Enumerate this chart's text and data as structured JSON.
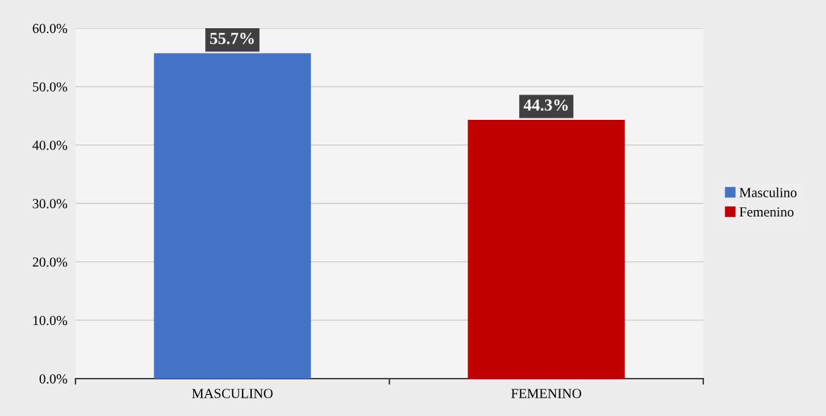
{
  "chart_data": {
    "type": "bar",
    "categories": [
      "MASCULINO",
      "FEMENINO"
    ],
    "series": [
      {
        "name": "Masculino",
        "color": "#4472c4",
        "values": [
          55.7,
          null
        ],
        "value_labels": [
          "55.7%",
          null
        ]
      },
      {
        "name": "Femenino",
        "color": "#c00000",
        "values": [
          null,
          44.3
        ],
        "value_labels": [
          null,
          "44.3%"
        ]
      }
    ],
    "ylim": [
      0,
      60
    ],
    "yticks": [
      {
        "value": 0,
        "label": "0.0%"
      },
      {
        "value": 10,
        "label": "10.0%"
      },
      {
        "value": 20,
        "label": "20.0%"
      },
      {
        "value": 30,
        "label": "30.0%"
      },
      {
        "value": 40,
        "label": "40.0%"
      },
      {
        "value": 50,
        "label": "50.0%"
      },
      {
        "value": 60,
        "label": "60.0%"
      }
    ],
    "grid": "y",
    "legend": "right"
  }
}
